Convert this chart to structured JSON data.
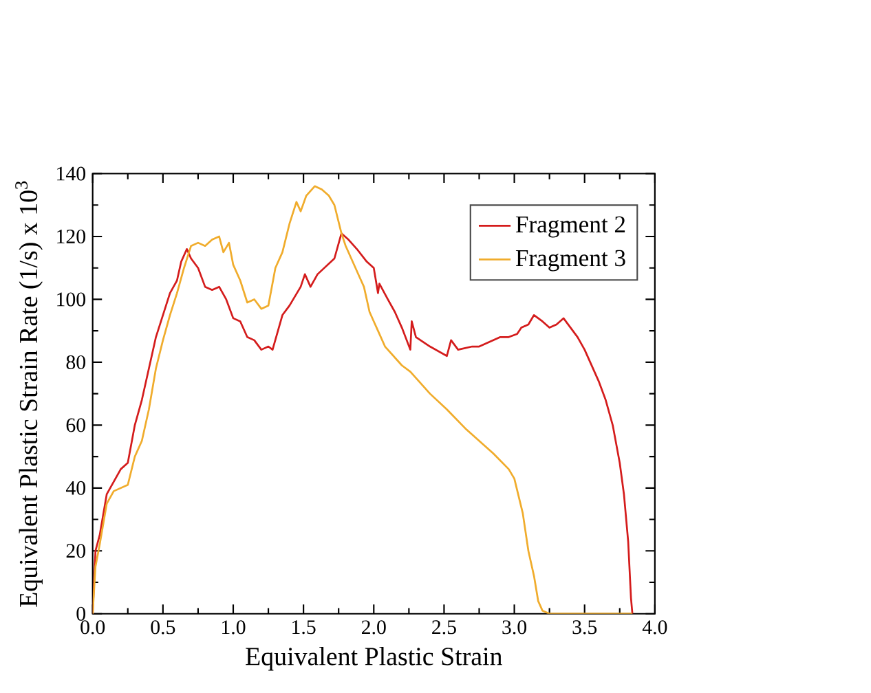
{
  "chart_data": {
    "type": "line",
    "xlabel": "Equivalent Plastic Strain",
    "ylabel": "Equivalent Plastic Strain Rate (1/s) x 10$^{3}$",
    "xlim": [
      0,
      4
    ],
    "ylim": [
      0,
      140
    ],
    "xticks": [
      {
        "value": 0,
        "label": "0.0"
      },
      {
        "value": 0.5,
        "label": "0.5"
      },
      {
        "value": 1,
        "label": "1.0"
      },
      {
        "value": 1.5,
        "label": "1.5"
      },
      {
        "value": 2,
        "label": "2.0"
      },
      {
        "value": 2.5,
        "label": "2.5"
      },
      {
        "value": 3,
        "label": "3.0"
      },
      {
        "value": 3.5,
        "label": "3.5"
      },
      {
        "value": 4,
        "label": "4.0"
      }
    ],
    "yticks": [
      0,
      20,
      40,
      60,
      80,
      100,
      120,
      140
    ],
    "grid": false,
    "legend": "top right",
    "marker": "none",
    "line_style": "solid",
    "series": [
      {
        "name": "Fragment 2",
        "color": "#d41c1c",
        "x": [
          0,
          0.02,
          0.05,
          0.1,
          0.15,
          0.2,
          0.25,
          0.3,
          0.35,
          0.4,
          0.45,
          0.5,
          0.55,
          0.6,
          0.63,
          0.67,
          0.7,
          0.75,
          0.8,
          0.85,
          0.9,
          0.95,
          1.0,
          1.05,
          1.1,
          1.15,
          1.2,
          1.25,
          1.28,
          1.35,
          1.4,
          1.48,
          1.51,
          1.55,
          1.6,
          1.72,
          1.77,
          1.82,
          1.88,
          1.95,
          2.0,
          2.03,
          2.04,
          2.1,
          2.15,
          2.2,
          2.26,
          2.27,
          2.3,
          2.4,
          2.52,
          2.55,
          2.6,
          2.7,
          2.75,
          2.9,
          2.96,
          3.02,
          3.05,
          3.1,
          3.14,
          3.2,
          3.25,
          3.3,
          3.35,
          3.4,
          3.45,
          3.5,
          3.55,
          3.6,
          3.65,
          3.7,
          3.75,
          3.78,
          3.81,
          3.83,
          3.84
        ],
        "values": [
          0,
          20,
          25,
          38,
          42,
          46,
          48,
          60,
          68,
          78,
          88,
          95,
          102,
          106,
          112,
          116,
          113,
          110,
          104,
          103,
          104,
          100,
          94,
          93,
          88,
          87,
          84,
          85,
          84,
          95,
          98,
          104,
          108,
          104,
          108,
          113,
          121,
          119,
          116,
          112,
          110,
          102,
          105,
          100,
          96,
          91,
          84,
          93,
          88,
          85,
          82,
          87,
          84,
          85,
          85,
          88,
          88,
          89,
          91,
          92,
          95,
          93,
          91,
          92,
          94,
          91,
          88,
          84,
          79,
          74,
          68,
          60,
          48,
          38,
          23,
          5,
          0
        ]
      },
      {
        "name": "Fragment 3",
        "color": "#f0ac2c",
        "x": [
          0,
          0.02,
          0.05,
          0.1,
          0.15,
          0.2,
          0.25,
          0.3,
          0.35,
          0.4,
          0.45,
          0.5,
          0.55,
          0.6,
          0.65,
          0.7,
          0.75,
          0.8,
          0.85,
          0.9,
          0.93,
          0.97,
          1.0,
          1.05,
          1.1,
          1.15,
          1.2,
          1.25,
          1.3,
          1.35,
          1.4,
          1.45,
          1.48,
          1.52,
          1.58,
          1.63,
          1.68,
          1.72,
          1.77,
          1.8,
          1.85,
          1.9,
          1.93,
          1.97,
          2.0,
          2.03,
          2.08,
          2.2,
          2.26,
          2.4,
          2.52,
          2.65,
          2.75,
          2.85,
          2.96,
          3.0,
          3.06,
          3.1,
          3.14,
          3.17,
          3.2,
          3.25,
          3.84
        ],
        "values": [
          0,
          15,
          22,
          35,
          39,
          40,
          41,
          50,
          55,
          65,
          78,
          87,
          95,
          102,
          110,
          117,
          118,
          117,
          119,
          120,
          115,
          118,
          111,
          106,
          99,
          100,
          97,
          98,
          110,
          115,
          124,
          131,
          128,
          133,
          136,
          135,
          133,
          130,
          121,
          117,
          112,
          107,
          104,
          96,
          93,
          90,
          85,
          79,
          77,
          70,
          65,
          59,
          55,
          51,
          46,
          43,
          32,
          20,
          12,
          4,
          1,
          0,
          0
        ]
      }
    ]
  }
}
